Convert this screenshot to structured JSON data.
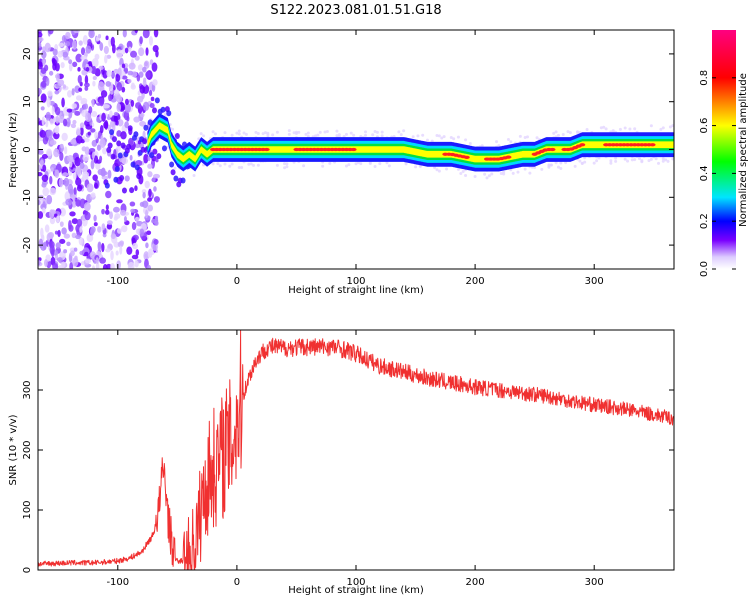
{
  "figure_title": "S122.2023.081.01.51.G18",
  "colors": {
    "snr_line": "#f03030",
    "colormap": [
      "#ffffff",
      "#7a00ff",
      "#0000ff",
      "#00e5ff",
      "#00ff00",
      "#ffff00",
      "#ff0000",
      "#ff0080"
    ]
  },
  "chart_data": [
    {
      "type": "heatmap",
      "xlabel": "Height of straight line (km)",
      "ylabel": "Frequency (Hz)",
      "xlim": [
        -167,
        367
      ],
      "ylim": [
        -25,
        25
      ],
      "xticks": [
        -100,
        0,
        100,
        200,
        300
      ],
      "yticks": [
        -20,
        -10,
        0,
        10,
        20
      ],
      "grid": false,
      "colorbar": {
        "label": "Normalized spectral amplitude",
        "range": [
          0,
          1
        ],
        "ticks": [
          0.0,
          0.2,
          0.4,
          0.6,
          0.8
        ]
      },
      "ridge": {
        "x": [
          -80,
          -72,
          -65,
          -58,
          -55,
          -50,
          -45,
          -40,
          -35,
          -30,
          -25,
          -20,
          0,
          50,
          100,
          140,
          160,
          180,
          200,
          220,
          240,
          250,
          260,
          270,
          280,
          290,
          300,
          320,
          340,
          367
        ],
        "frequency": [
          -2,
          3,
          5,
          4,
          1,
          -1,
          -2,
          -1,
          -2,
          0,
          -1,
          0,
          0,
          0,
          0,
          0,
          -1,
          -1,
          -2,
          -2,
          -1,
          -1,
          0,
          0,
          0,
          1,
          1,
          1,
          1,
          1
        ]
      }
    },
    {
      "type": "line",
      "xlabel": "Height of straight line (km)",
      "ylabel": "SNR (10 * v/v)",
      "xlim": [
        -167,
        367
      ],
      "ylim": [
        0,
        400
      ],
      "xticks": [
        -100,
        0,
        100,
        200,
        300
      ],
      "yticks": [
        0,
        100,
        200,
        300
      ],
      "grid": false,
      "series": [
        {
          "x": [
            -167,
            -140,
            -120,
            -100,
            -90,
            -80,
            -70,
            -65,
            -62,
            -60,
            -58,
            -55,
            -52,
            -50,
            -45,
            -40,
            -35,
            -30,
            -25,
            -20,
            -15,
            -10,
            -5,
            0,
            5,
            10,
            15,
            20,
            25,
            30,
            40,
            60,
            80,
            90,
            100,
            110,
            120,
            140,
            160,
            180,
            200,
            220,
            240,
            260,
            280,
            300,
            320,
            340,
            360,
            367
          ],
          "values": [
            10,
            12,
            12,
            15,
            20,
            30,
            60,
            110,
            170,
            150,
            90,
            50,
            20,
            15,
            15,
            25,
            50,
            100,
            150,
            170,
            180,
            200,
            210,
            250,
            290,
            320,
            345,
            360,
            370,
            372,
            370,
            372,
            372,
            368,
            360,
            350,
            340,
            330,
            320,
            312,
            305,
            300,
            295,
            290,
            282,
            275,
            270,
            263,
            255,
            252
          ]
        }
      ]
    }
  ]
}
